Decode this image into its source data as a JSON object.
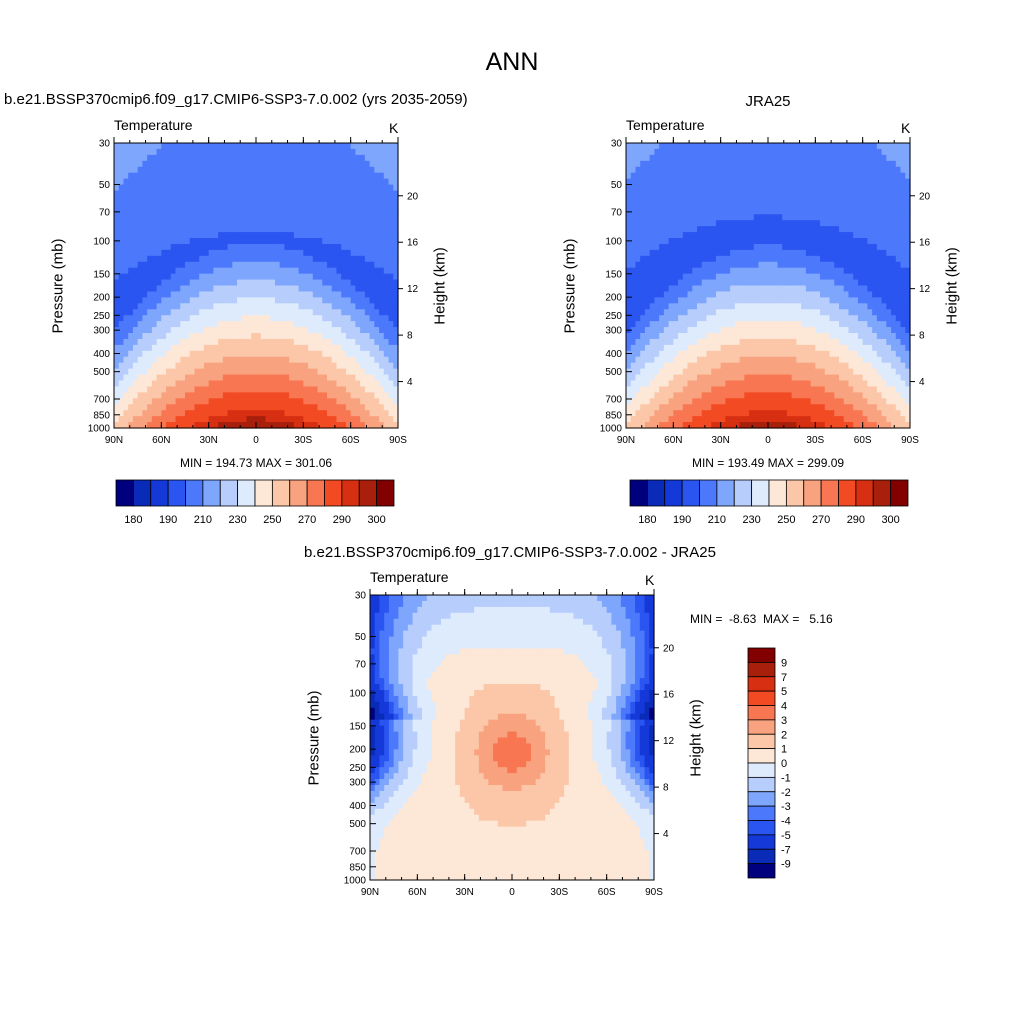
{
  "figure_title": "ANN",
  "panels": [
    {
      "title": "b.e21.BSSP370cmip6.f09_g17.CMIP6-SSP3-7.0.002 (yrs 2035-2059)",
      "left_label": "Temperature",
      "units": "K",
      "ylabel": "Pressure (mb)",
      "ylabel_right": "Height (km)",
      "stats": "MIN = 194.73  MAX = 301.06"
    },
    {
      "title": "JRA25",
      "left_label": "Temperature",
      "units": "K",
      "ylabel": "Pressure (mb)",
      "ylabel_right": "Height (km)",
      "stats": "MIN = 193.49  MAX = 299.09"
    },
    {
      "title": "b.e21.BSSP370cmip6.f09_g17.CMIP6-SSP3-7.0.002 - JRA25",
      "left_label": "Temperature",
      "units": "K",
      "ylabel": "Pressure (mb)",
      "ylabel_right": "Height (km)",
      "stats": "MIN =  -8.63  MAX =   5.16"
    }
  ],
  "chart_data": [
    {
      "type": "heatmap",
      "title": "b.e21.BSSP370cmip6.f09_g17.CMIP6-SSP3-7.0.002 (yrs 2035-2059)",
      "variable": "Temperature",
      "units": "K",
      "xlabel": "",
      "ylabel": "Pressure (mb)",
      "ylabel_right": "Height (km)",
      "x_ticks": [
        "90N",
        "60N",
        "30N",
        "0",
        "30S",
        "60S",
        "90S"
      ],
      "y_ticks": [
        30,
        50,
        70,
        100,
        150,
        200,
        250,
        300,
        400,
        500,
        700,
        850,
        1000
      ],
      "y_right_ticks": [
        4,
        8,
        12,
        16,
        20
      ],
      "ylim": [
        1000,
        30
      ],
      "colorbar_labels": [
        "180",
        "190",
        "210",
        "230",
        "250",
        "270",
        "290",
        "300"
      ],
      "min": 194.73,
      "max": 301.06
    },
    {
      "type": "heatmap",
      "title": "JRA25",
      "variable": "Temperature",
      "units": "K",
      "xlabel": "",
      "ylabel": "Pressure (mb)",
      "ylabel_right": "Height (km)",
      "x_ticks": [
        "90N",
        "60N",
        "30N",
        "0",
        "30S",
        "60S",
        "90S"
      ],
      "y_ticks": [
        30,
        50,
        70,
        100,
        150,
        200,
        250,
        300,
        400,
        500,
        700,
        850,
        1000
      ],
      "y_right_ticks": [
        4,
        8,
        12,
        16,
        20
      ],
      "ylim": [
        1000,
        30
      ],
      "colorbar_labels": [
        "180",
        "190",
        "210",
        "230",
        "250",
        "270",
        "290",
        "300"
      ],
      "min": 193.49,
      "max": 299.09
    },
    {
      "type": "heatmap",
      "title": "b.e21.BSSP370cmip6.f09_g17.CMIP6-SSP3-7.0.002 - JRA25",
      "variable": "Temperature",
      "units": "K",
      "xlabel": "",
      "ylabel": "Pressure (mb)",
      "ylabel_right": "Height (km)",
      "x_ticks": [
        "90N",
        "60N",
        "30N",
        "0",
        "30S",
        "60S",
        "90S"
      ],
      "y_ticks": [
        30,
        50,
        70,
        100,
        150,
        200,
        250,
        300,
        400,
        500,
        700,
        850,
        1000
      ],
      "y_right_ticks": [
        4,
        8,
        12,
        16,
        20
      ],
      "ylim": [
        1000,
        30
      ],
      "colorbar_labels": [
        "9",
        "7",
        "5",
        "4",
        "3",
        "2",
        "1",
        "0",
        "-1",
        "-2",
        "-3",
        "-4",
        "-5",
        "-7",
        "-9"
      ],
      "min": -8.63,
      "max": 5.16
    }
  ],
  "palette": {
    "cool_to_warm": [
      "#00007f",
      "#0a2ab8",
      "#1539d9",
      "#2a55f0",
      "#4c78fb",
      "#7ea6fc",
      "#b7cdfc",
      "#deebfd",
      "#fde7d6",
      "#fbc7a8",
      "#f9a27f",
      "#f87752",
      "#f24a22",
      "#d62f11",
      "#a81f0c",
      "#820000"
    ]
  }
}
